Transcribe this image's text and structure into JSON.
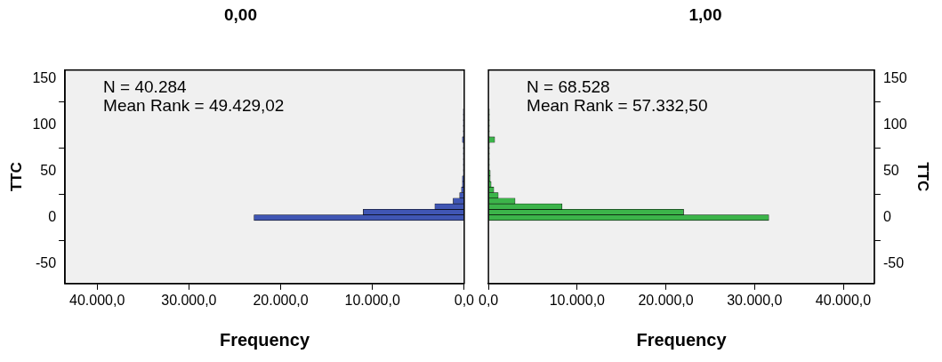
{
  "chart_data": [
    {
      "type": "histogram",
      "orientation": "horizontal",
      "title": "0,00",
      "xlabel": "Frequency",
      "ylabel": "TTC",
      "bins": [
        -3,
        3,
        9,
        15,
        21,
        27,
        33,
        39,
        45,
        51,
        57,
        63,
        69,
        75,
        81,
        87,
        93,
        99,
        105,
        111,
        117
      ],
      "values": [
        22900,
        11000,
        3200,
        1200,
        500,
        300,
        200,
        200,
        100,
        100,
        100,
        100,
        100,
        100,
        200,
        100,
        100,
        100,
        100,
        100
      ],
      "color": "#4056b4",
      "xlim": [
        43500,
        0
      ],
      "xticks": [
        {
          "value": 40000,
          "label": "40.000,0"
        },
        {
          "value": 30000,
          "label": "30.000,0"
        },
        {
          "value": 20000,
          "label": "20.000,0"
        },
        {
          "value": 10000,
          "label": "10.000,0"
        },
        {
          "value": 0,
          "label": "0,0"
        }
      ],
      "ylim": [
        -71,
        159
      ],
      "yticks": [
        -50,
        0,
        50,
        100,
        150
      ],
      "annotations": [
        "N = 40.284",
        "Mean Rank = 49.429,02"
      ]
    },
    {
      "type": "histogram",
      "orientation": "horizontal",
      "title": "1,00",
      "xlabel": "Frequency",
      "ylabel": "TTC",
      "bins": [
        -3,
        3,
        9,
        15,
        21,
        27,
        33,
        39,
        45,
        51,
        57,
        63,
        69,
        75,
        81,
        87,
        93,
        99,
        105,
        111,
        117
      ],
      "values": [
        31600,
        22000,
        8300,
        3000,
        1100,
        600,
        300,
        200,
        200,
        100,
        100,
        100,
        100,
        100,
        700,
        100,
        100,
        100,
        100,
        100
      ],
      "color": "#3cb44a",
      "xlim": [
        0,
        43500
      ],
      "xticks": [
        {
          "value": 0,
          "label": "0,0"
        },
        {
          "value": 10000,
          "label": "10.000,0"
        },
        {
          "value": 20000,
          "label": "20.000,0"
        },
        {
          "value": 30000,
          "label": "30.000,0"
        },
        {
          "value": 40000,
          "label": "40.000,0"
        }
      ],
      "ylim": [
        -71,
        159
      ],
      "yticks": [
        -50,
        0,
        50,
        100,
        150
      ],
      "annotations": [
        "N = 68.528",
        "Mean Rank = 57.332,50"
      ]
    }
  ]
}
